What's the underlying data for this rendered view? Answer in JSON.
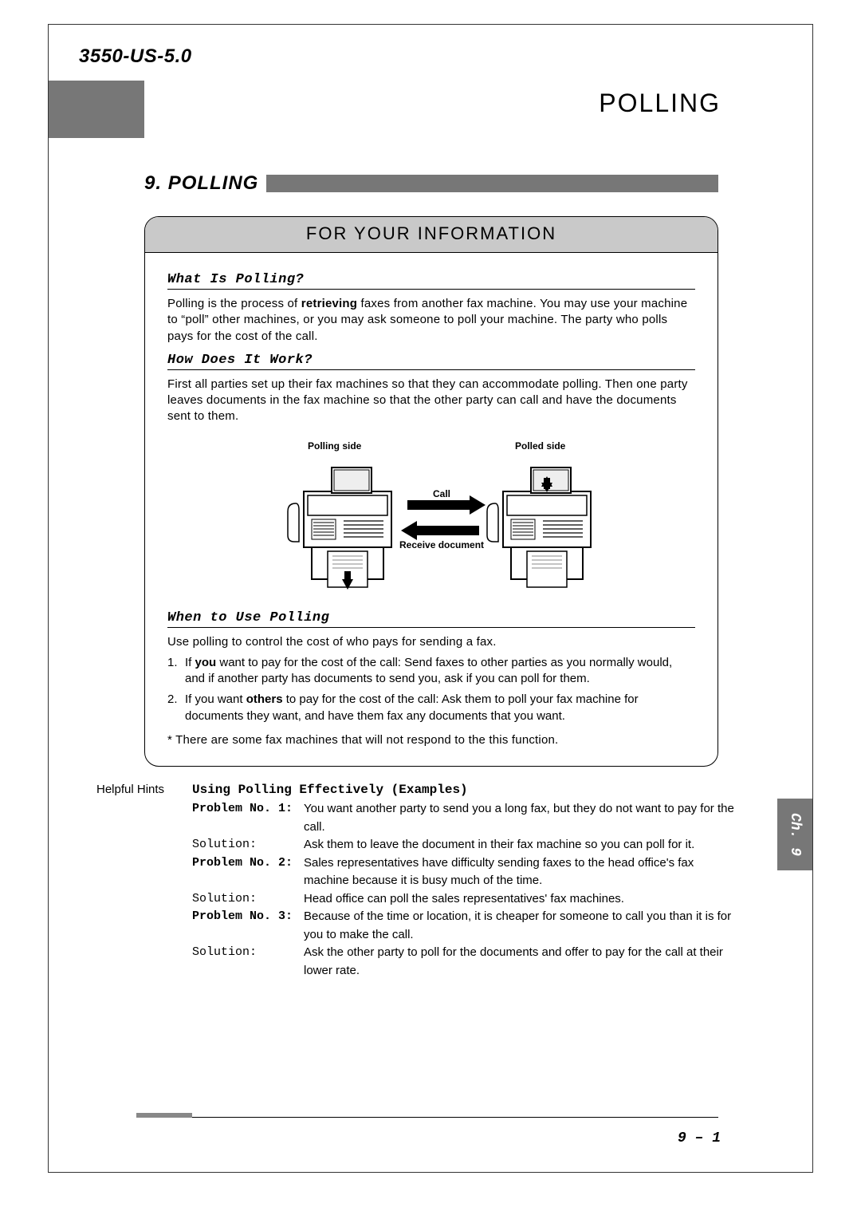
{
  "doc_id": "3550-US-5.0",
  "chapter_title": "POLLING",
  "section_number": "9.",
  "section_title": "POLLING",
  "info_box": {
    "header": "FOR YOUR INFORMATION",
    "sub1": {
      "title": "What Is Polling?",
      "text_before": "Polling is the process of ",
      "bold": "retrieving",
      "text_after": " faxes from another fax machine. You may use your machine to “poll” other machines, or you may ask someone to poll your machine. The party who polls pays for the cost of the call."
    },
    "sub2": {
      "title": "How Does It Work?",
      "text": "First all parties set up their fax machines so that they can accommodate polling. Then one party leaves documents in the fax machine so that the other party can call and have the documents sent to them."
    },
    "diagram": {
      "polling_side": "Polling side",
      "polled_side": "Polled side",
      "call": "Call",
      "receive_doc": "Receive document"
    },
    "sub3": {
      "title": "When to Use Polling",
      "intro": "Use polling to control the cost of who pays for sending a fax.",
      "items": [
        {
          "num": "1.",
          "before": "If ",
          "bold": "you",
          "after": " want to pay for the cost of the call: Send faxes to other parties as you normally would, and if another party has documents to send you, ask if you can poll for them."
        },
        {
          "num": "2.",
          "before": "If you want ",
          "bold": "others",
          "after": " to pay for the cost of the call: Ask them to poll your fax machine for documents they want, and have them fax any documents that you want."
        }
      ],
      "note": "* There are some fax machines that will not respond to the this function."
    }
  },
  "hints": {
    "left_label": "Helpful Hints",
    "title": "Using Polling Effectively (Examples)",
    "rows": [
      {
        "label": "Problem No. 1:",
        "bold": true,
        "text": "You want another party to send you a long fax, but they do not want to pay for the call."
      },
      {
        "label": "Solution:",
        "bold": false,
        "text": "Ask them to leave the document in their fax machine so you can poll for it."
      },
      {
        "label": "Problem No. 2:",
        "bold": true,
        "text": "Sales representatives have difficulty sending faxes to the head office's fax machine because it is busy much of the time."
      },
      {
        "label": "Solution:",
        "bold": false,
        "text": "Head office can poll the sales representatives' fax machines."
      },
      {
        "label": "Problem No. 3:",
        "bold": true,
        "text": "Because of the time or location, it is cheaper for someone to call you than it is for you to make the call."
      },
      {
        "label": "Solution:",
        "bold": false,
        "text": "Ask the other party to poll for the documents and offer to pay for the call at their lower rate."
      }
    ]
  },
  "side_tab": "Ch. 9",
  "page_number": "9 – 1",
  "colors": {
    "gray_band": "#777777",
    "light_gray": "#c9c9c9",
    "text": "#000000"
  }
}
